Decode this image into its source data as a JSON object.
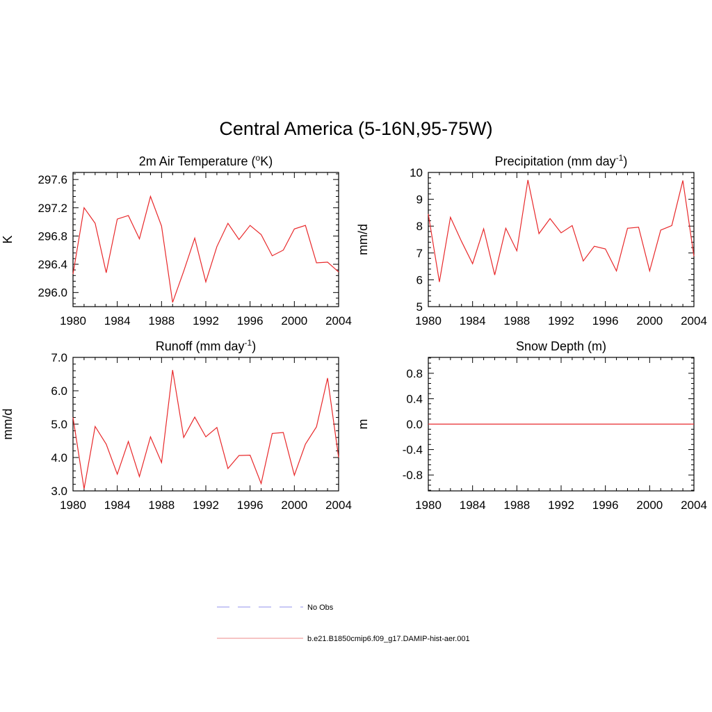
{
  "title": "Central America (5-16N,95-75W)",
  "colors": {
    "model": "#e8282a",
    "obs": "#a8a8f0",
    "axis": "#000000"
  },
  "chart_data": [
    {
      "id": "temp",
      "type": "line",
      "title_main": "2m Air Temperature (",
      "title_sup": "o",
      "title_end": "K)",
      "ylabel": "K",
      "xlim": [
        1980,
        2004
      ],
      "ylim": [
        295.8,
        297.7
      ],
      "x_ticks": [
        1980,
        1984,
        1988,
        1992,
        1996,
        2000,
        2004
      ],
      "x_tick_labels": [
        "1980",
        "1984",
        "1988",
        "1992",
        "1996",
        "2000",
        "2004"
      ],
      "y_ticks": [
        296.0,
        296.4,
        296.8,
        297.2,
        297.6
      ],
      "y_tick_labels": [
        "296.0",
        "296.4",
        "296.8",
        "297.2",
        "297.6"
      ],
      "series": [
        {
          "x": [
            1980,
            1981,
            1982,
            1983,
            1984,
            1985,
            1986,
            1987,
            1988,
            1989,
            1990,
            1991,
            1992,
            1993,
            1994,
            1995,
            1996,
            1997,
            1998,
            1999,
            2000,
            2001,
            2002,
            2003,
            2004
          ],
          "y": [
            296.26,
            297.2,
            296.98,
            296.28,
            297.04,
            297.09,
            296.76,
            297.36,
            296.94,
            295.86,
            296.3,
            296.77,
            296.15,
            296.65,
            296.98,
            296.75,
            296.95,
            296.82,
            296.52,
            296.6,
            296.9,
            296.95,
            296.42,
            296.43,
            296.29
          ]
        }
      ]
    },
    {
      "id": "precip",
      "type": "line",
      "title_main": "Precipitation (mm day",
      "title_sup": "-1",
      "title_end": ")",
      "ylabel": "mm/d",
      "xlim": [
        1980,
        2004
      ],
      "ylim": [
        5,
        10
      ],
      "x_ticks": [
        1980,
        1984,
        1988,
        1992,
        1996,
        2000,
        2004
      ],
      "x_tick_labels": [
        "1980",
        "1984",
        "1988",
        "1992",
        "1996",
        "2000",
        "2004"
      ],
      "y_ticks": [
        5,
        6,
        7,
        8,
        9,
        10
      ],
      "y_tick_labels": [
        "5",
        "6",
        "7",
        "8",
        "9",
        "10"
      ],
      "series": [
        {
          "x": [
            1980,
            1981,
            1982,
            1983,
            1984,
            1985,
            1986,
            1987,
            1988,
            1989,
            1990,
            1991,
            1992,
            1993,
            1994,
            1995,
            1996,
            1997,
            1998,
            1999,
            2000,
            2001,
            2002,
            2003,
            2004
          ],
          "y": [
            8.45,
            5.92,
            8.33,
            7.43,
            6.6,
            7.9,
            6.18,
            7.92,
            7.08,
            9.72,
            7.72,
            8.28,
            7.75,
            8.02,
            6.7,
            7.25,
            7.15,
            6.33,
            7.92,
            7.96,
            6.33,
            7.85,
            8.02,
            9.7,
            6.88
          ]
        }
      ]
    },
    {
      "id": "runoff",
      "type": "line",
      "title_main": "Runoff (mm day",
      "title_sup": "-1",
      "title_end": ")",
      "ylabel": "mm/d",
      "xlim": [
        1980,
        2004
      ],
      "ylim": [
        3.0,
        7.0
      ],
      "x_ticks": [
        1980,
        1984,
        1988,
        1992,
        1996,
        2000,
        2004
      ],
      "x_tick_labels": [
        "1980",
        "1984",
        "1988",
        "1992",
        "1996",
        "2000",
        "2004"
      ],
      "y_ticks": [
        3.0,
        4.0,
        5.0,
        6.0,
        7.0
      ],
      "y_tick_labels": [
        "3.0",
        "4.0",
        "5.0",
        "6.0",
        "7.0"
      ],
      "series": [
        {
          "x": [
            1980,
            1981,
            1982,
            1983,
            1984,
            1985,
            1986,
            1987,
            1988,
            1989,
            1990,
            1991,
            1992,
            1993,
            1994,
            1995,
            1996,
            1997,
            1998,
            1999,
            2000,
            2001,
            2002,
            2003,
            2004
          ],
          "y": [
            5.2,
            3.06,
            4.93,
            4.4,
            3.5,
            4.48,
            3.43,
            4.62,
            3.85,
            6.62,
            4.6,
            5.21,
            4.62,
            4.9,
            3.67,
            4.06,
            4.07,
            3.22,
            4.72,
            4.75,
            3.47,
            4.4,
            4.92,
            6.38,
            4.0
          ]
        }
      ]
    },
    {
      "id": "snow",
      "type": "line",
      "title_main": "Snow Depth (m)",
      "title_sup": "",
      "title_end": "",
      "ylabel": "m",
      "xlim": [
        1980,
        2004
      ],
      "ylim": [
        -1.05,
        1.05
      ],
      "x_ticks": [
        1980,
        1984,
        1988,
        1992,
        1996,
        2000,
        2004
      ],
      "x_tick_labels": [
        "1980",
        "1984",
        "1988",
        "1992",
        "1996",
        "2000",
        "2004"
      ],
      "y_ticks": [
        -0.8,
        -0.4,
        0.0,
        0.4,
        0.8
      ],
      "y_tick_labels": [
        "-0.8",
        "-0.4",
        "0.0",
        "0.4",
        "0.8"
      ],
      "series": [
        {
          "x": [
            1980,
            2004
          ],
          "y": [
            0.0,
            0.0
          ]
        }
      ]
    }
  ],
  "legend": [
    {
      "label": "No Obs",
      "style": "dashed",
      "color": "#a8a8f0"
    },
    {
      "label": "b.e21.B1850cmip6.f09_g17.DAMIP-hist-aer.001",
      "style": "solid",
      "color": "#f0a0a0"
    }
  ]
}
